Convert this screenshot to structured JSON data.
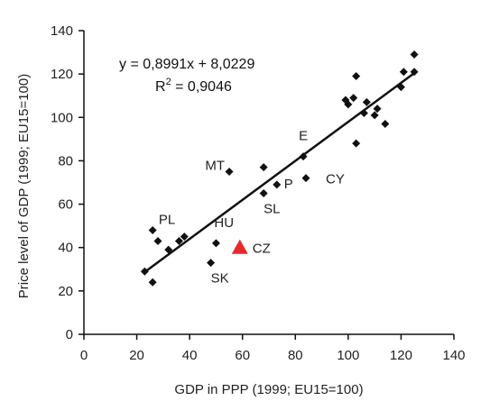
{
  "chart_data": {
    "type": "scatter",
    "xlabel": "GDP in PPP (1999; EU15=100)",
    "ylabel": "Price level of GDP (1999; EU15=100)",
    "xlim": [
      0,
      140
    ],
    "ylim": [
      0,
      140
    ],
    "xticks": [
      0,
      20,
      40,
      60,
      80,
      100,
      120,
      140
    ],
    "yticks": [
      0,
      20,
      40,
      60,
      80,
      100,
      120,
      140
    ],
    "grid": false,
    "trendline": {
      "slope": 0.8991,
      "intercept": 8.0229,
      "x_range": [
        23,
        125
      ]
    },
    "equation": {
      "line1": "y = 0,8991x + 8,0229",
      "r2_prefix": "R",
      "r2_sup": "2",
      "r2_rest": " = 0,9046"
    },
    "points": [
      {
        "x": 23,
        "y": 29,
        "label": ""
      },
      {
        "x": 26,
        "y": 24,
        "label": ""
      },
      {
        "x": 26,
        "y": 48,
        "label": ""
      },
      {
        "x": 28,
        "y": 43,
        "label": ""
      },
      {
        "x": 32,
        "y": 39,
        "label": ""
      },
      {
        "x": 36,
        "y": 43,
        "label": ""
      },
      {
        "x": 38,
        "y": 45,
        "label": "PL"
      },
      {
        "x": 48,
        "y": 33,
        "label": "SK"
      },
      {
        "x": 50,
        "y": 42,
        "label": "HU"
      },
      {
        "x": 55,
        "y": 75,
        "label": "MT"
      },
      {
        "x": 68,
        "y": 77,
        "label": ""
      },
      {
        "x": 68,
        "y": 65,
        "label": "SL"
      },
      {
        "x": 73,
        "y": 69,
        "label": "P"
      },
      {
        "x": 83,
        "y": 82,
        "label": "E"
      },
      {
        "x": 84,
        "y": 72,
        "label": "CY"
      },
      {
        "x": 99,
        "y": 108,
        "label": ""
      },
      {
        "x": 100,
        "y": 106,
        "label": ""
      },
      {
        "x": 102,
        "y": 109,
        "label": ""
      },
      {
        "x": 103,
        "y": 119,
        "label": ""
      },
      {
        "x": 103,
        "y": 88,
        "label": ""
      },
      {
        "x": 106,
        "y": 102,
        "label": ""
      },
      {
        "x": 107,
        "y": 107,
        "label": ""
      },
      {
        "x": 110,
        "y": 101,
        "label": ""
      },
      {
        "x": 111,
        "y": 104,
        "label": ""
      },
      {
        "x": 114,
        "y": 97,
        "label": ""
      },
      {
        "x": 120,
        "y": 114,
        "label": ""
      },
      {
        "x": 121,
        "y": 121,
        "label": ""
      },
      {
        "x": 125,
        "y": 121,
        "label": ""
      },
      {
        "x": 125,
        "y": 129,
        "label": ""
      }
    ],
    "highlight": {
      "x": 59,
      "y": 40,
      "label": "CZ",
      "color": "#e8282b"
    },
    "marker_color": "#111111"
  }
}
